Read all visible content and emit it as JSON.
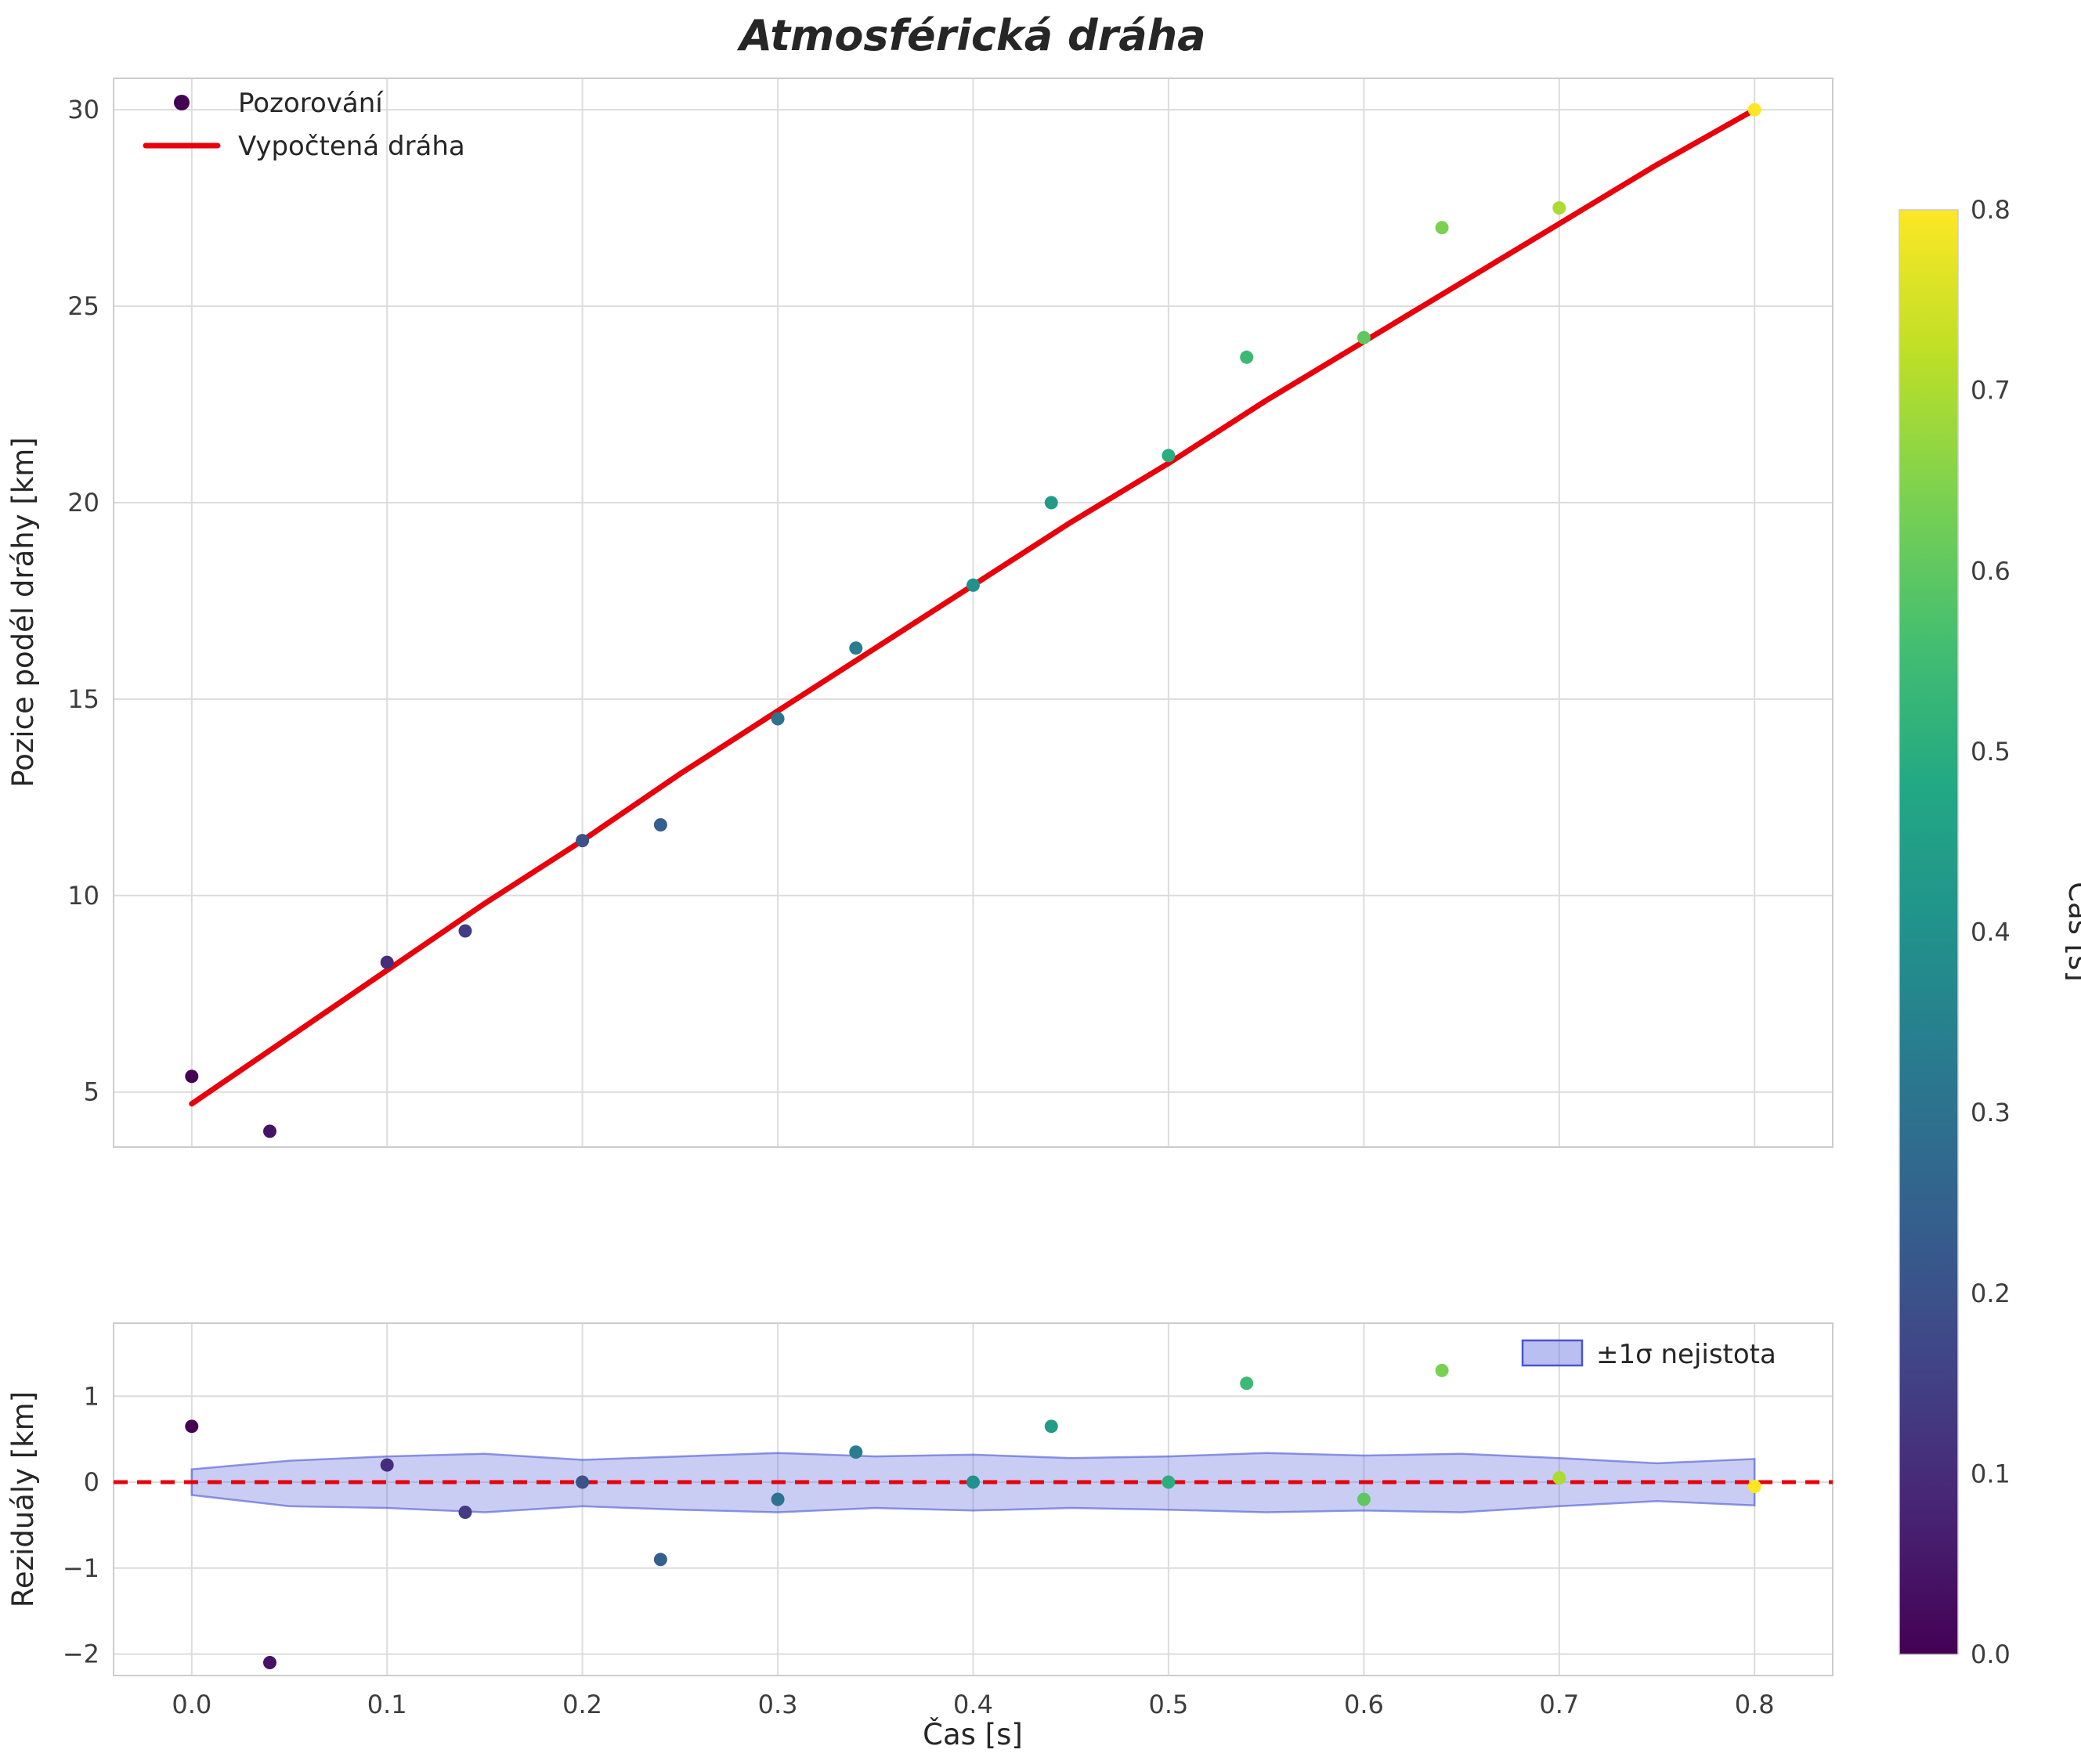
{
  "figure": {
    "title": "Atmosférická dráha",
    "background": "#ffffff"
  },
  "colors": {
    "fit_line": "#e8000b",
    "band_fill": "#6470e0",
    "band_edge": "#4a55d0",
    "grid": "#dcdcdc",
    "spine": "#cccccc",
    "text": "#262626",
    "observation_marker": "#440154"
  },
  "colorbar": {
    "label": "Čas [s]",
    "colormap": "viridis",
    "min": 0.0,
    "max": 0.8,
    "tick_values": [
      0.0,
      0.1,
      0.2,
      0.3,
      0.4,
      0.5,
      0.6,
      0.7,
      0.8
    ],
    "tick_labels": [
      "0.0",
      "0.1",
      "0.2",
      "0.3",
      "0.4",
      "0.5",
      "0.6",
      "0.7",
      "0.8"
    ]
  },
  "chart_data": [
    {
      "type": "scatter",
      "title": "Atmosférická dráha",
      "xlabel": "",
      "ylabel": "Pozice podél dráhy [km]",
      "xlim": [
        -0.04,
        0.84
      ],
      "ylim": [
        3.6,
        30.8
      ],
      "grid": true,
      "legend_position": "upper-left",
      "xtick_values": [
        0.0,
        0.1,
        0.2,
        0.3,
        0.4,
        0.5,
        0.6,
        0.7,
        0.8
      ],
      "xtick_labels": [],
      "ytick_values": [
        5,
        10,
        15,
        20,
        25,
        30
      ],
      "ytick_labels": [
        "5",
        "10",
        "15",
        "20",
        "25",
        "30"
      ],
      "legend": [
        {
          "label": "Pozorování",
          "marker": "dot"
        },
        {
          "label": "Vypočtená dráha",
          "marker": "line"
        }
      ],
      "series": [
        {
          "name": "Pozorování",
          "type": "scatter",
          "color_by": "time",
          "x": [
            0.0,
            0.04,
            0.1,
            0.14,
            0.2,
            0.24,
            0.3,
            0.34,
            0.4,
            0.44,
            0.5,
            0.54,
            0.6,
            0.64,
            0.7,
            0.8
          ],
          "y": [
            5.4,
            4.0,
            8.3,
            9.1,
            11.4,
            11.8,
            14.5,
            16.3,
            17.9,
            20.0,
            21.2,
            23.7,
            24.2,
            27.0,
            27.5,
            30.0
          ]
        },
        {
          "name": "Vypočtená dráha",
          "type": "line",
          "color": "#e8000b",
          "x": [
            0.0,
            0.05,
            0.1,
            0.15,
            0.2,
            0.25,
            0.3,
            0.35,
            0.4,
            0.45,
            0.5,
            0.55,
            0.6,
            0.65,
            0.7,
            0.75,
            0.8
          ],
          "y": [
            4.7,
            6.4,
            8.1,
            9.8,
            11.4,
            13.1,
            14.7,
            16.3,
            17.9,
            19.5,
            21.0,
            22.6,
            24.1,
            25.6,
            27.1,
            28.6,
            30.0
          ]
        }
      ]
    },
    {
      "type": "scatter",
      "title": "",
      "xlabel": "Čas [s]",
      "ylabel": "Reziduály [km]",
      "xlim": [
        -0.04,
        0.84
      ],
      "ylim": [
        -2.25,
        1.85
      ],
      "grid": true,
      "legend_position": "upper-right",
      "xtick_values": [
        0.0,
        0.1,
        0.2,
        0.3,
        0.4,
        0.5,
        0.6,
        0.7,
        0.8
      ],
      "xtick_labels": [
        "0.0",
        "0.1",
        "0.2",
        "0.3",
        "0.4",
        "0.5",
        "0.6",
        "0.7",
        "0.8"
      ],
      "ytick_values": [
        -2,
        -1,
        0,
        1
      ],
      "ytick_labels": [
        "−2",
        "−1",
        "0",
        "1"
      ],
      "legend": [
        {
          "label": "±1σ nejistota",
          "marker": "patch"
        }
      ],
      "series": [
        {
          "name": "Reziduály",
          "type": "scatter",
          "color_by": "time",
          "x": [
            0.0,
            0.04,
            0.1,
            0.14,
            0.2,
            0.24,
            0.3,
            0.34,
            0.4,
            0.44,
            0.5,
            0.54,
            0.6,
            0.64,
            0.7,
            0.8
          ],
          "y": [
            0.65,
            -2.1,
            0.2,
            -0.35,
            0.0,
            -0.9,
            -0.2,
            0.35,
            0.0,
            0.65,
            0.0,
            1.15,
            -0.2,
            1.3,
            0.05,
            -0.05
          ]
        },
        {
          "name": "zero",
          "type": "hline-dashed",
          "y": 0,
          "color": "#e8000b"
        }
      ],
      "band": {
        "label": "±1σ nejistota",
        "x": [
          0.0,
          0.05,
          0.1,
          0.15,
          0.2,
          0.25,
          0.3,
          0.35,
          0.4,
          0.45,
          0.5,
          0.55,
          0.6,
          0.65,
          0.7,
          0.75,
          0.8
        ],
        "upper": [
          0.15,
          0.25,
          0.3,
          0.33,
          0.26,
          0.3,
          0.34,
          0.3,
          0.32,
          0.28,
          0.3,
          0.34,
          0.31,
          0.33,
          0.28,
          0.22,
          0.27
        ],
        "lower": [
          -0.15,
          -0.28,
          -0.3,
          -0.35,
          -0.28,
          -0.32,
          -0.35,
          -0.3,
          -0.33,
          -0.3,
          -0.32,
          -0.35,
          -0.33,
          -0.35,
          -0.28,
          -0.22,
          -0.27
        ]
      }
    }
  ]
}
